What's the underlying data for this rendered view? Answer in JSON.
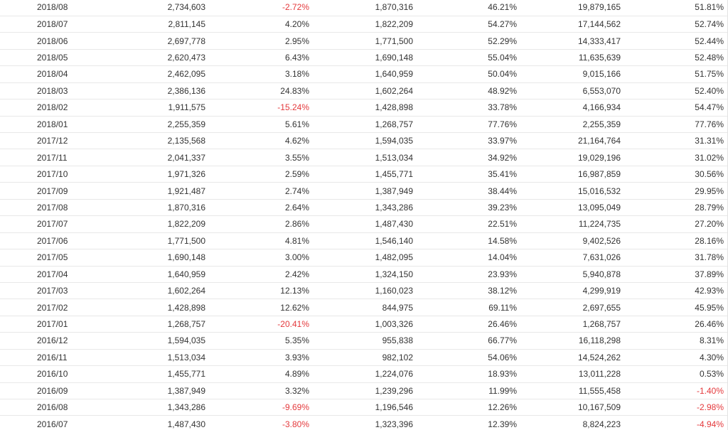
{
  "table": {
    "rows": [
      {
        "month": "2018/08",
        "c1": "2,734,603",
        "c2": "-2.72%",
        "c3": "1,870,316",
        "c4": "46.21%",
        "c5": "19,879,165",
        "c6": "51.81%"
      },
      {
        "month": "2018/07",
        "c1": "2,811,145",
        "c2": "4.20%",
        "c3": "1,822,209",
        "c4": "54.27%",
        "c5": "17,144,562",
        "c6": "52.74%"
      },
      {
        "month": "2018/06",
        "c1": "2,697,778",
        "c2": "2.95%",
        "c3": "1,771,500",
        "c4": "52.29%",
        "c5": "14,333,417",
        "c6": "52.44%"
      },
      {
        "month": "2018/05",
        "c1": "2,620,473",
        "c2": "6.43%",
        "c3": "1,690,148",
        "c4": "55.04%",
        "c5": "11,635,639",
        "c6": "52.48%"
      },
      {
        "month": "2018/04",
        "c1": "2,462,095",
        "c2": "3.18%",
        "c3": "1,640,959",
        "c4": "50.04%",
        "c5": "9,015,166",
        "c6": "51.75%"
      },
      {
        "month": "2018/03",
        "c1": "2,386,136",
        "c2": "24.83%",
        "c3": "1,602,264",
        "c4": "48.92%",
        "c5": "6,553,070",
        "c6": "52.40%"
      },
      {
        "month": "2018/02",
        "c1": "1,911,575",
        "c2": "-15.24%",
        "c3": "1,428,898",
        "c4": "33.78%",
        "c5": "4,166,934",
        "c6": "54.47%"
      },
      {
        "month": "2018/01",
        "c1": "2,255,359",
        "c2": "5.61%",
        "c3": "1,268,757",
        "c4": "77.76%",
        "c5": "2,255,359",
        "c6": "77.76%"
      },
      {
        "month": "2017/12",
        "c1": "2,135,568",
        "c2": "4.62%",
        "c3": "1,594,035",
        "c4": "33.97%",
        "c5": "21,164,764",
        "c6": "31.31%"
      },
      {
        "month": "2017/11",
        "c1": "2,041,337",
        "c2": "3.55%",
        "c3": "1,513,034",
        "c4": "34.92%",
        "c5": "19,029,196",
        "c6": "31.02%"
      },
      {
        "month": "2017/10",
        "c1": "1,971,326",
        "c2": "2.59%",
        "c3": "1,455,771",
        "c4": "35.41%",
        "c5": "16,987,859",
        "c6": "30.56%"
      },
      {
        "month": "2017/09",
        "c1": "1,921,487",
        "c2": "2.74%",
        "c3": "1,387,949",
        "c4": "38.44%",
        "c5": "15,016,532",
        "c6": "29.95%"
      },
      {
        "month": "2017/08",
        "c1": "1,870,316",
        "c2": "2.64%",
        "c3": "1,343,286",
        "c4": "39.23%",
        "c5": "13,095,049",
        "c6": "28.79%"
      },
      {
        "month": "2017/07",
        "c1": "1,822,209",
        "c2": "2.86%",
        "c3": "1,487,430",
        "c4": "22.51%",
        "c5": "11,224,735",
        "c6": "27.20%"
      },
      {
        "month": "2017/06",
        "c1": "1,771,500",
        "c2": "4.81%",
        "c3": "1,546,140",
        "c4": "14.58%",
        "c5": "9,402,526",
        "c6": "28.16%"
      },
      {
        "month": "2017/05",
        "c1": "1,690,148",
        "c2": "3.00%",
        "c3": "1,482,095",
        "c4": "14.04%",
        "c5": "7,631,026",
        "c6": "31.78%"
      },
      {
        "month": "2017/04",
        "c1": "1,640,959",
        "c2": "2.42%",
        "c3": "1,324,150",
        "c4": "23.93%",
        "c5": "5,940,878",
        "c6": "37.89%"
      },
      {
        "month": "2017/03",
        "c1": "1,602,264",
        "c2": "12.13%",
        "c3": "1,160,023",
        "c4": "38.12%",
        "c5": "4,299,919",
        "c6": "42.93%"
      },
      {
        "month": "2017/02",
        "c1": "1,428,898",
        "c2": "12.62%",
        "c3": "844,975",
        "c4": "69.11%",
        "c5": "2,697,655",
        "c6": "45.95%"
      },
      {
        "month": "2017/01",
        "c1": "1,268,757",
        "c2": "-20.41%",
        "c3": "1,003,326",
        "c4": "26.46%",
        "c5": "1,268,757",
        "c6": "26.46%"
      },
      {
        "month": "2016/12",
        "c1": "1,594,035",
        "c2": "5.35%",
        "c3": "955,838",
        "c4": "66.77%",
        "c5": "16,118,298",
        "c6": "8.31%"
      },
      {
        "month": "2016/11",
        "c1": "1,513,034",
        "c2": "3.93%",
        "c3": "982,102",
        "c4": "54.06%",
        "c5": "14,524,262",
        "c6": "4.30%"
      },
      {
        "month": "2016/10",
        "c1": "1,455,771",
        "c2": "4.89%",
        "c3": "1,224,076",
        "c4": "18.93%",
        "c5": "13,011,228",
        "c6": "0.53%"
      },
      {
        "month": "2016/09",
        "c1": "1,387,949",
        "c2": "3.32%",
        "c3": "1,239,296",
        "c4": "11.99%",
        "c5": "11,555,458",
        "c6": "-1.40%"
      },
      {
        "month": "2016/08",
        "c1": "1,343,286",
        "c2": "-9.69%",
        "c3": "1,196,546",
        "c4": "12.26%",
        "c5": "10,167,509",
        "c6": "-2.98%"
      },
      {
        "month": "2016/07",
        "c1": "1,487,430",
        "c2": "-3.80%",
        "c3": "1,323,396",
        "c4": "12.39%",
        "c5": "8,824,223",
        "c6": "-4.94%"
      }
    ]
  },
  "colors": {
    "text": "#333333",
    "negative": "#e4393c",
    "row_border": "#e8e8e8"
  }
}
